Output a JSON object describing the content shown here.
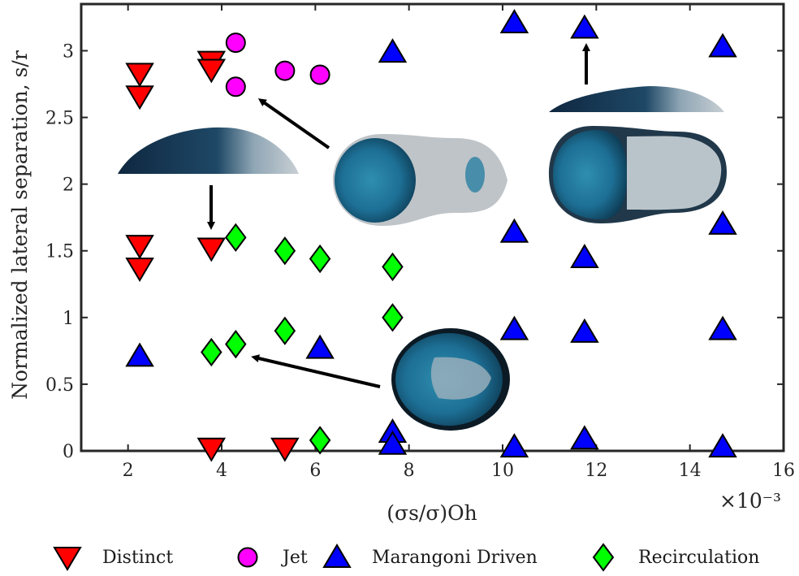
{
  "chart_data": {
    "type": "scatter",
    "xlabel": "(σs/σ)Oh",
    "ylabel": "Normalized lateral separation, s/r",
    "x_multiplier": "×10⁻³",
    "xlim": [
      1,
      16
    ],
    "ylim": [
      0,
      3.35
    ],
    "xticks": [
      "2",
      "4",
      "6",
      "8",
      "10",
      "12",
      "14",
      "16"
    ],
    "yticks": [
      "0",
      "0.5",
      "1",
      "1.5",
      "2",
      "2.5",
      "3"
    ],
    "x_tick_values": [
      2,
      4,
      6,
      8,
      10,
      12,
      14,
      16
    ],
    "y_tick_values": [
      0,
      0.5,
      1,
      1.5,
      2,
      2.5,
      3
    ],
    "grid": false,
    "legend_position": "bottom",
    "series": [
      {
        "name": "Distinct",
        "marker": "triangle-down",
        "color": "#ff0000",
        "points": [
          [
            2.25,
            2.83
          ],
          [
            2.25,
            2.66
          ],
          [
            3.78,
            2.92
          ],
          [
            3.78,
            2.86
          ],
          [
            2.25,
            1.54
          ],
          [
            2.25,
            1.37
          ],
          [
            3.78,
            1.52
          ],
          [
            3.78,
            0.02
          ],
          [
            5.35,
            0.02
          ]
        ]
      },
      {
        "name": "Jet",
        "marker": "circle",
        "color": "#ff00ff",
        "points": [
          [
            4.3,
            3.06
          ],
          [
            4.3,
            2.73
          ],
          [
            5.35,
            2.85
          ],
          [
            6.1,
            2.82
          ]
        ]
      },
      {
        "name": "Marangoni Driven",
        "marker": "triangle-up",
        "color": "#0000ff",
        "points": [
          [
            2.25,
            0.71
          ],
          [
            6.1,
            0.77
          ],
          [
            7.65,
            2.99
          ],
          [
            7.65,
            0.14
          ],
          [
            7.65,
            0.05
          ],
          [
            10.25,
            3.21
          ],
          [
            10.25,
            1.64
          ],
          [
            10.25,
            0.91
          ],
          [
            10.25,
            0.03
          ],
          [
            11.75,
            3.17
          ],
          [
            11.75,
            1.45
          ],
          [
            11.75,
            0.89
          ],
          [
            11.75,
            0.09
          ],
          [
            14.7,
            3.03
          ],
          [
            14.7,
            1.7
          ],
          [
            14.7,
            0.91
          ],
          [
            14.7,
            0.03
          ]
        ]
      },
      {
        "name": "Recirculation",
        "marker": "diamond",
        "color": "#00ff00",
        "points": [
          [
            3.78,
            0.74
          ],
          [
            4.3,
            1.6
          ],
          [
            4.3,
            0.8
          ],
          [
            5.35,
            1.5
          ],
          [
            5.35,
            0.9
          ],
          [
            6.1,
            1.44
          ],
          [
            6.1,
            0.08
          ],
          [
            7.65,
            1.38
          ],
          [
            7.65,
            1.0
          ]
        ]
      }
    ]
  }
}
